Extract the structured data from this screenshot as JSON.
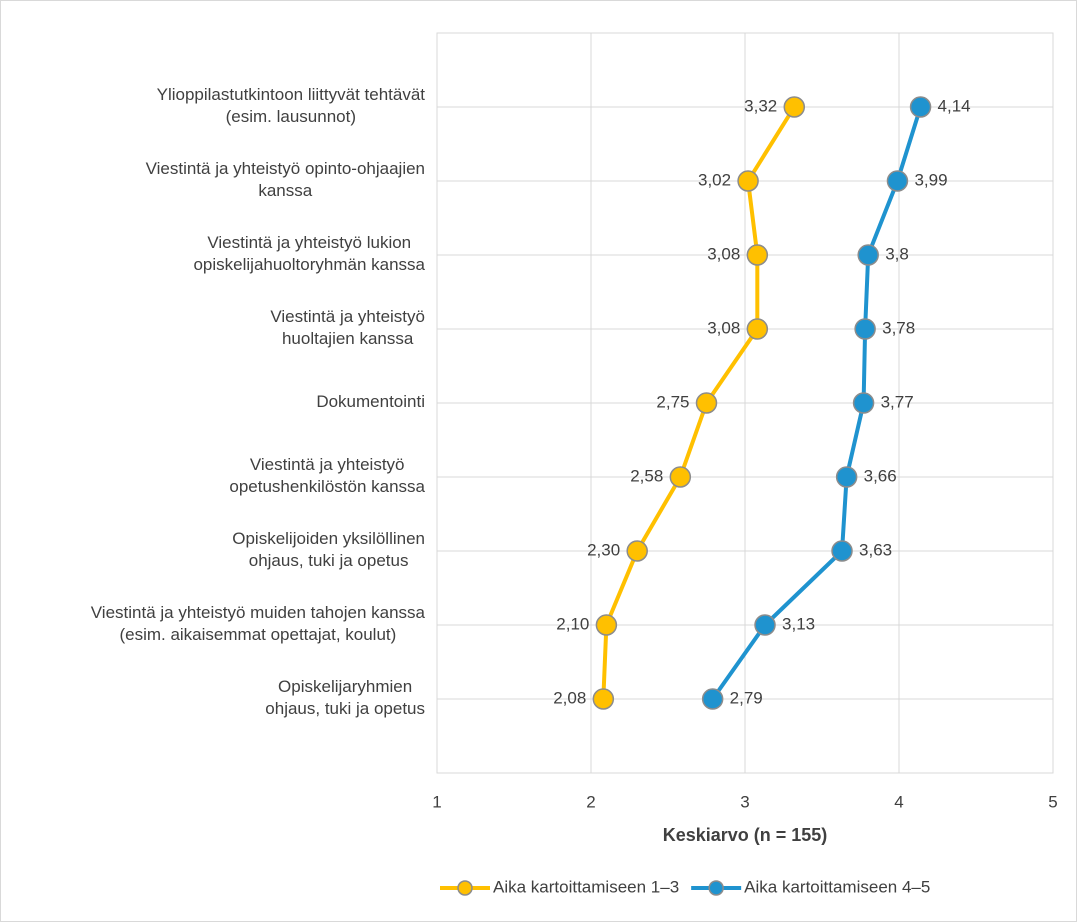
{
  "chart_data": {
    "type": "dot_line",
    "xlabel": "Keskiarvo (n = 155)",
    "categories": [
      "Ylioppilastutkintoon liittyvät tehtävät\n(esim. lausunnot)",
      "Viestintä ja yhteistyö opinto-ohjaajien\nkanssa",
      "Viestintä ja yhteistyö lukion\nopiskelijahuoltoryhmän kanssa",
      "Viestintä ja yhteistyö\nhuoltajien kanssa",
      "Dokumentointi",
      "Viestintä ja yhteistyö\nopetushenkilöstön kanssa",
      "Opiskelijoiden yksilöllinen\nohjaus, tuki ja opetus",
      "Viestintä ja yhteistyö muiden tahojen kanssa\n(esim. aikaisemmat opettajat, koulut)",
      "Opiskelijaryhmien\nohjaus, tuki ja opetus"
    ],
    "series": [
      {
        "name": "Aika kartoittamiseen 1–3",
        "color": "#FFC000",
        "values": [
          3.32,
          3.02,
          3.08,
          3.08,
          2.75,
          2.58,
          2.3,
          2.1,
          2.08
        ],
        "value_labels": [
          "3,32",
          "3,02",
          "3,08",
          "3,08",
          "2,75",
          "2,58",
          "2,30",
          "2,10",
          "2,08"
        ]
      },
      {
        "name": "Aika kartoittamiseen 4–5",
        "color": "#1F93CF",
        "values": [
          4.14,
          3.99,
          3.8,
          3.78,
          3.77,
          3.66,
          3.63,
          3.13,
          2.79
        ],
        "value_labels": [
          "4,14",
          "3,99",
          "3,8",
          "3,78",
          "3,77",
          "3,66",
          "3,63",
          "3,13",
          "2,79"
        ]
      }
    ],
    "xlim": [
      1,
      5
    ],
    "xticks": [
      1,
      2,
      3,
      4,
      5
    ],
    "grid": true,
    "legend": "bottom"
  }
}
